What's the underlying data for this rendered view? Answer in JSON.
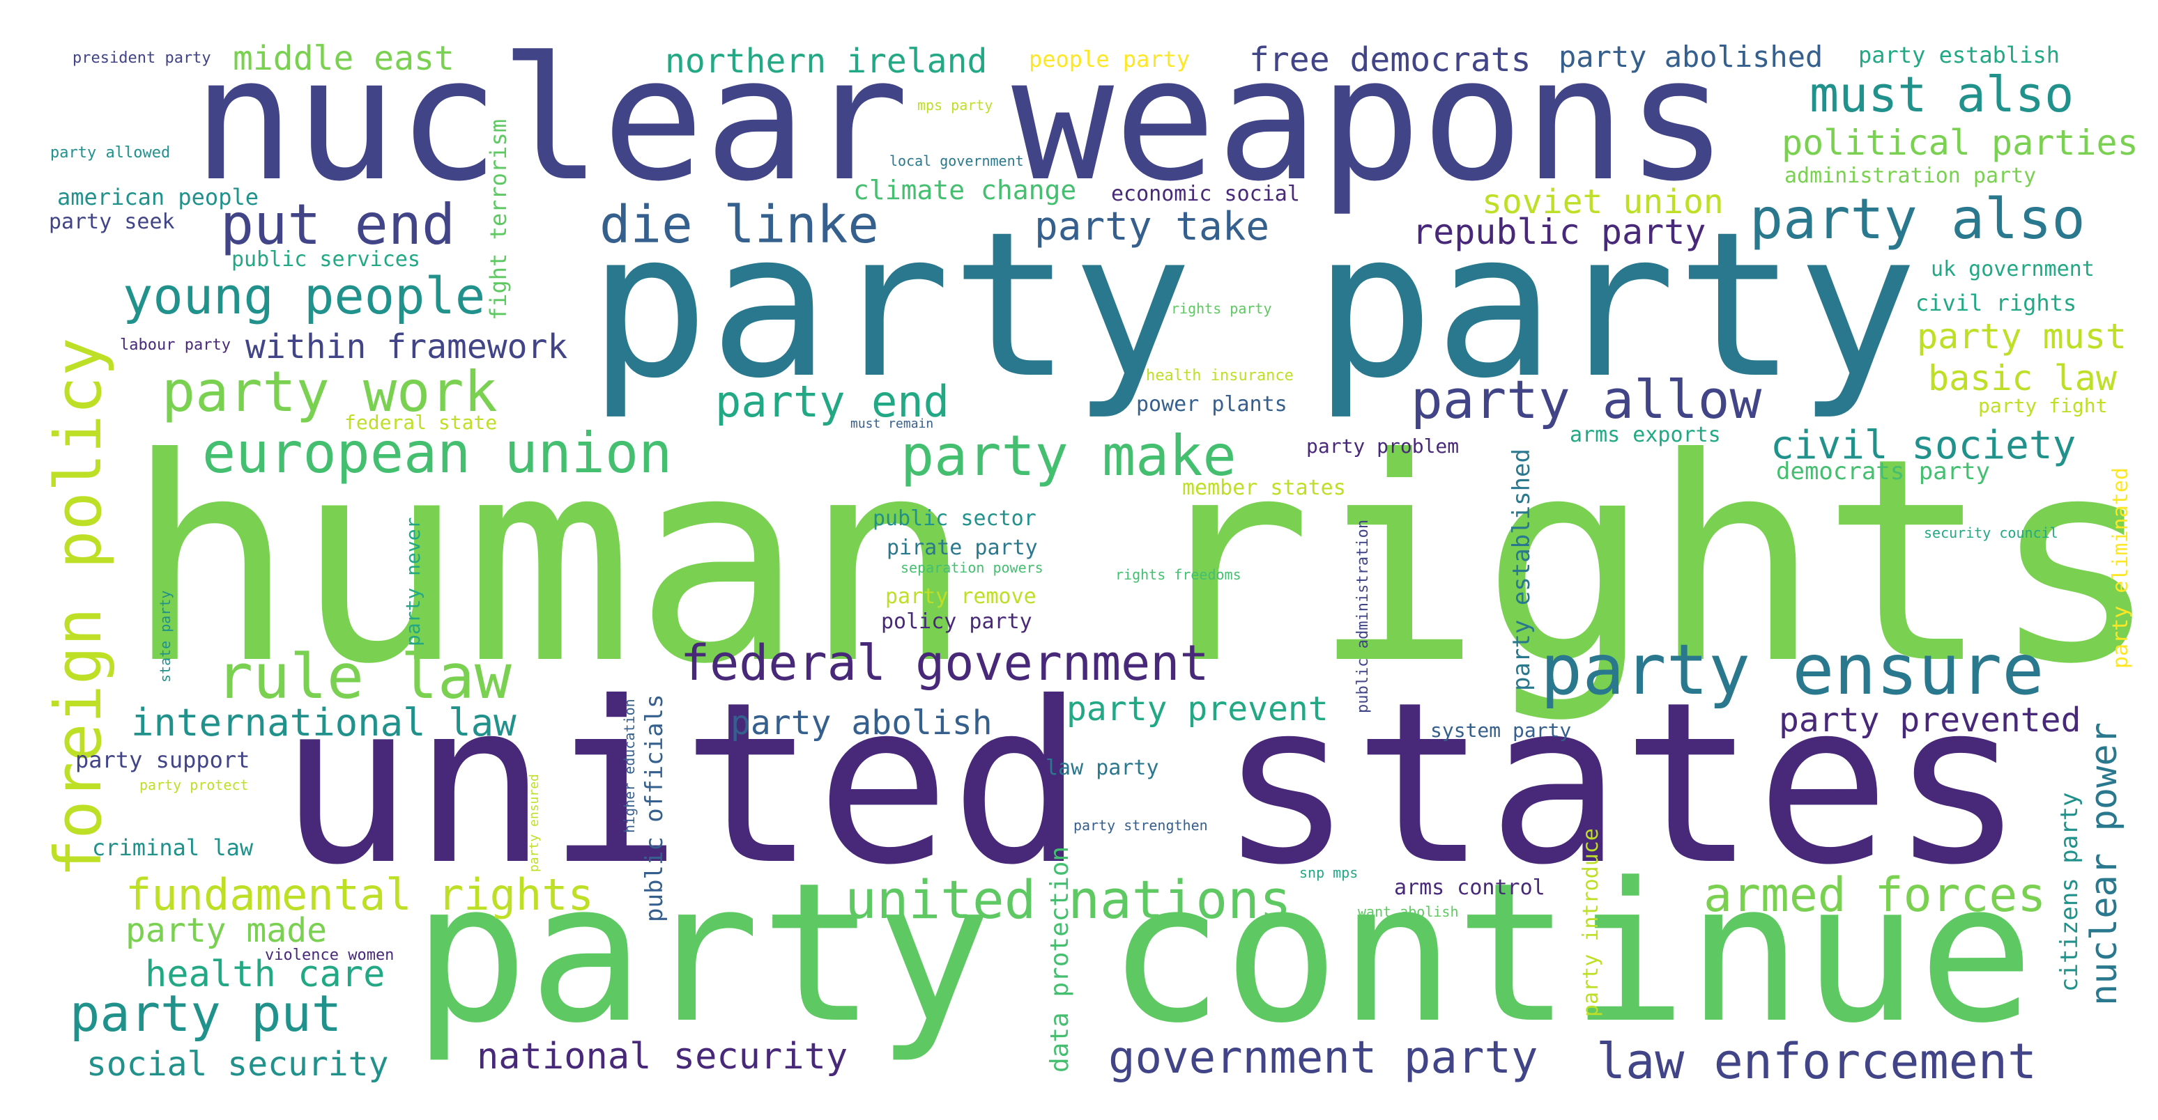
{
  "palette": {
    "background": "#ffffff",
    "purple-dark": "#482878",
    "indigo": "#414487",
    "blue": "#355f8d",
    "teal-blue": "#2a788e",
    "teal": "#21918c",
    "green-teal": "#22a884",
    "green": "#44bf70",
    "green-light": "#5ec962",
    "lime": "#7ad151",
    "yellow-green": "#bddf26",
    "yellow": "#fde725"
  },
  "words": [
    {
      "text": "human rights",
      "color": "#7ad151"
    },
    {
      "text": "united states",
      "color": "#482878"
    },
    {
      "text": "party party",
      "color": "#2a788e"
    },
    {
      "text": "nuclear weapons",
      "color": "#414487"
    },
    {
      "text": "party continue",
      "color": "#5ec962"
    },
    {
      "text": "party ensure",
      "color": "#2a788e"
    },
    {
      "text": "federal government",
      "color": "#482878"
    },
    {
      "text": "law enforcement",
      "color": "#414487"
    },
    {
      "text": "united nations",
      "color": "#5ec962"
    },
    {
      "text": "foreign policy",
      "color": "#bddf26"
    },
    {
      "text": "european union",
      "color": "#44bf70"
    },
    {
      "text": "party make",
      "color": "#44bf70"
    },
    {
      "text": "party work",
      "color": "#7ad151"
    },
    {
      "text": "rule law",
      "color": "#7ad151"
    },
    {
      "text": "young people",
      "color": "#21918c"
    },
    {
      "text": "put end",
      "color": "#414487"
    },
    {
      "text": "die linke",
      "color": "#355f8d"
    },
    {
      "text": "party also",
      "color": "#2a788e"
    },
    {
      "text": "must also",
      "color": "#21918c"
    },
    {
      "text": "party allow",
      "color": "#414487"
    },
    {
      "text": "armed forces",
      "color": "#7ad151"
    },
    {
      "text": "party put",
      "color": "#21918c"
    },
    {
      "text": "government party",
      "color": "#414487"
    },
    {
      "text": "party end",
      "color": "#22a884"
    },
    {
      "text": "fundamental rights",
      "color": "#bddf26"
    },
    {
      "text": "civil society",
      "color": "#21918c"
    },
    {
      "text": "international law",
      "color": "#21918c"
    },
    {
      "text": "middle east",
      "color": "#7ad151"
    },
    {
      "text": "northern ireland",
      "color": "#22a884"
    },
    {
      "text": "free democrats",
      "color": "#414487"
    },
    {
      "text": "party abolished",
      "color": "#355f8d"
    },
    {
      "text": "national security",
      "color": "#482878"
    },
    {
      "text": "social security",
      "color": "#21918c"
    },
    {
      "text": "health care",
      "color": "#22a884"
    },
    {
      "text": "party made",
      "color": "#7ad151"
    },
    {
      "text": "party take",
      "color": "#355f8d"
    },
    {
      "text": "republic party",
      "color": "#482878"
    },
    {
      "text": "soviet union",
      "color": "#bddf26"
    },
    {
      "text": "political parties",
      "color": "#7ad151"
    },
    {
      "text": "within framework",
      "color": "#414487"
    },
    {
      "text": "party abolish",
      "color": "#355f8d"
    },
    {
      "text": "party prevent",
      "color": "#22a884"
    },
    {
      "text": "party prevented",
      "color": "#482878"
    },
    {
      "text": "nuclear power",
      "color": "#2a788e"
    },
    {
      "text": "party must",
      "color": "#bddf26"
    },
    {
      "text": "basic law",
      "color": "#bddf26"
    },
    {
      "text": "climate change",
      "color": "#44bf70"
    },
    {
      "text": "data protection",
      "color": "#44bf70"
    },
    {
      "text": "public officials",
      "color": "#355f8d"
    },
    {
      "text": "party established",
      "color": "#2a788e"
    },
    {
      "text": "party introduce",
      "color": "#bddf26"
    },
    {
      "text": "citizens party",
      "color": "#21918c"
    },
    {
      "text": "fight terrorism",
      "color": "#5ec962"
    },
    {
      "text": "party eliminated",
      "color": "#fde725"
    },
    {
      "text": "party support",
      "color": "#414487"
    },
    {
      "text": "criminal law",
      "color": "#21918c"
    },
    {
      "text": "american people",
      "color": "#21918c"
    },
    {
      "text": "party seek",
      "color": "#414487"
    },
    {
      "text": "public services",
      "color": "#22a884"
    },
    {
      "text": "people party",
      "color": "#fde725"
    },
    {
      "text": "party establish",
      "color": "#22a884"
    },
    {
      "text": "administration party",
      "color": "#7ad151"
    },
    {
      "text": "economic social",
      "color": "#482878"
    },
    {
      "text": "uk government",
      "color": "#22a884"
    },
    {
      "text": "civil rights",
      "color": "#22a884"
    },
    {
      "text": "power plants",
      "color": "#355f8d"
    },
    {
      "text": "party problem",
      "color": "#482878"
    },
    {
      "text": "arms exports",
      "color": "#22a884"
    },
    {
      "text": "democrats party",
      "color": "#44bf70"
    },
    {
      "text": "member states",
      "color": "#bddf26"
    },
    {
      "text": "public sector",
      "color": "#21918c"
    },
    {
      "text": "pirate party",
      "color": "#2a788e"
    },
    {
      "text": "party remove",
      "color": "#bddf26"
    },
    {
      "text": "policy party",
      "color": "#482878"
    },
    {
      "text": "party fight",
      "color": "#bddf26"
    },
    {
      "text": "system party",
      "color": "#355f8d"
    },
    {
      "text": "law party",
      "color": "#2a788e"
    },
    {
      "text": "arms control",
      "color": "#482878"
    },
    {
      "text": "party never",
      "color": "#22a884"
    },
    {
      "text": "federal state",
      "color": "#bddf26"
    },
    {
      "text": "public administration",
      "color": "#414487"
    },
    {
      "text": "higher education",
      "color": "#355f8d"
    },
    {
      "text": "president party",
      "color": "#414487"
    },
    {
      "text": "party allowed",
      "color": "#21918c"
    },
    {
      "text": "labour party",
      "color": "#482878"
    },
    {
      "text": "state party",
      "color": "#21918c"
    },
    {
      "text": "party protect",
      "color": "#bddf26"
    },
    {
      "text": "party ensured",
      "color": "#bddf26"
    },
    {
      "text": "violence women",
      "color": "#482878"
    },
    {
      "text": "mps party",
      "color": "#bddf26"
    },
    {
      "text": "local government",
      "color": "#2a788e"
    },
    {
      "text": "rights party",
      "color": "#5ec962"
    },
    {
      "text": "health insurance",
      "color": "#bddf26"
    },
    {
      "text": "must remain",
      "color": "#355f8d"
    },
    {
      "text": "separation powers",
      "color": "#44bf70"
    },
    {
      "text": "rights freedoms",
      "color": "#44bf70"
    },
    {
      "text": "security council",
      "color": "#22a884"
    },
    {
      "text": "party strengthen",
      "color": "#355f8d"
    },
    {
      "text": "snp mps",
      "color": "#22a884"
    },
    {
      "text": "want abolish",
      "color": "#5ec962"
    }
  ]
}
